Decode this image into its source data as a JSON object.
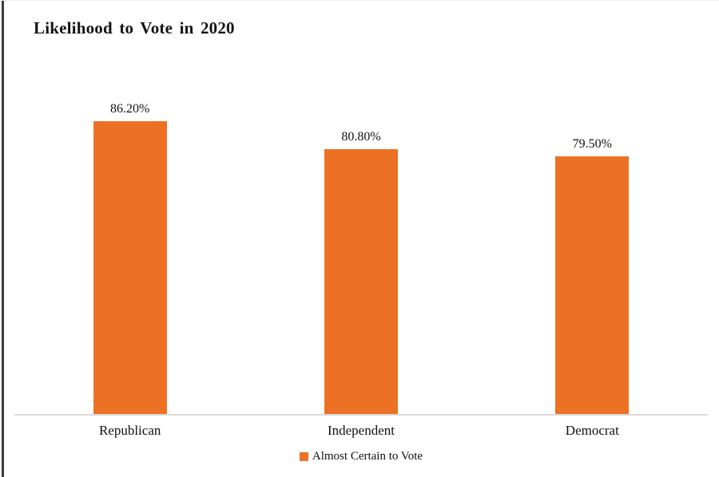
{
  "chart_data": {
    "type": "bar",
    "title": "Likelihood to Vote in 2020",
    "categories": [
      "Republican",
      "Independent",
      "Democrat"
    ],
    "series": [
      {
        "name": "Almost Certain to Vote",
        "values": [
          86.2,
          80.8,
          79.5
        ]
      }
    ],
    "value_labels": [
      "86.20%",
      "80.80%",
      "79.50%"
    ],
    "xlabel": "",
    "ylabel": "",
    "ylim": [
      30,
      90
    ],
    "grid": false,
    "y_axis_visible": false,
    "legend_position": "bottom",
    "bar_color": "#ED7124",
    "axis_line_color": "#dadada"
  }
}
